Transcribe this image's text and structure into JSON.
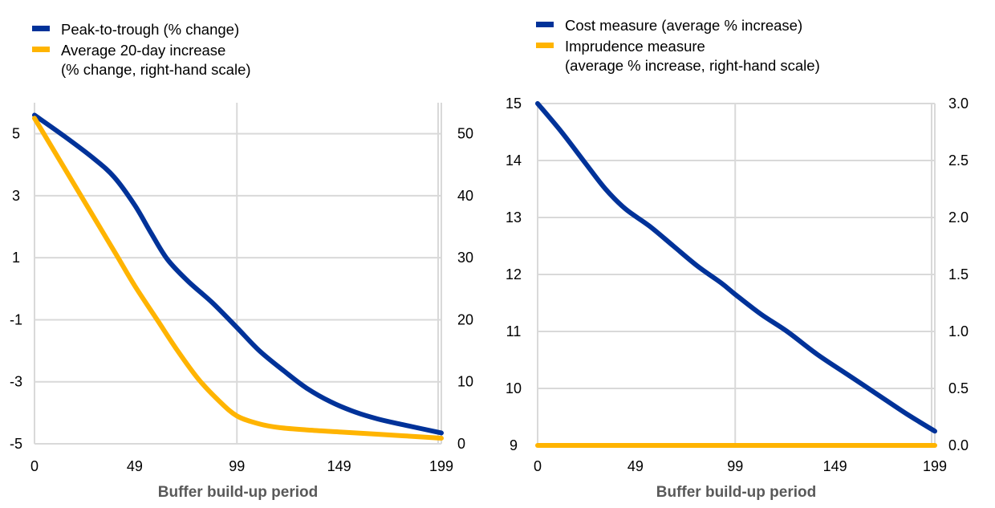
{
  "chart_data": [
    {
      "type": "line",
      "xlabel": "Buffer build-up period",
      "x_ticks": [
        "0",
        "49",
        "99",
        "149",
        "199"
      ],
      "x_range": [
        0,
        199
      ],
      "ylim_left": [
        -5,
        6
      ],
      "y_ticks_left": [
        "5",
        "3",
        "1",
        "-1",
        "-3",
        "-5"
      ],
      "ylim_right": [
        0,
        55
      ],
      "y_ticks_right": [
        "50",
        "40",
        "30",
        "20",
        "10",
        "0"
      ],
      "legend_position": "top-left",
      "series": [
        {
          "name": "Peak-to-trough (% change)",
          "axis": "left",
          "color": "#003299",
          "x": [
            0,
            15,
            29,
            39,
            49,
            57,
            65,
            75,
            87,
            99,
            110,
            122,
            133,
            145,
            157,
            168,
            180,
            199
          ],
          "values": [
            5.6,
            4.9,
            4.2,
            3.6,
            2.7,
            1.8,
            0.95,
            0.25,
            -0.45,
            -1.25,
            -2.0,
            -2.65,
            -3.2,
            -3.65,
            -3.98,
            -4.2,
            -4.38,
            -4.65
          ]
        },
        {
          "name": "Average 20-day increase (% change, right-hand scale)",
          "axis": "right",
          "color": "#FFB400",
          "x": [
            0,
            10,
            20,
            30,
            40,
            49,
            60,
            70,
            80,
            90,
            99,
            110,
            120,
            135,
            150,
            165,
            180,
            199
          ],
          "values": [
            52.5,
            47,
            41.5,
            36,
            30.5,
            25.5,
            20,
            15,
            10.5,
            7,
            4.5,
            3.2,
            2.6,
            2.2,
            1.9,
            1.6,
            1.3,
            0.9
          ]
        }
      ]
    },
    {
      "type": "line",
      "xlabel": "Buffer build-up period",
      "x_ticks": [
        "0",
        "49",
        "99",
        "149",
        "199"
      ],
      "x_range": [
        0,
        199
      ],
      "ylim_left": [
        9,
        15
      ],
      "y_ticks_left": [
        "15",
        "14",
        "13",
        "12",
        "11",
        "10",
        "9"
      ],
      "ylim_right": [
        0,
        3
      ],
      "y_ticks_right": [
        "3.0",
        "2.5",
        "2.0",
        "1.5",
        "1.0",
        "0.5",
        "0.0"
      ],
      "legend_position": "top-left",
      "series": [
        {
          "name": "Cost measure (average % increase)",
          "axis": "left",
          "color": "#003299",
          "x": [
            0,
            12,
            24,
            34,
            44,
            56,
            68,
            80,
            92,
            99,
            112,
            125,
            140,
            155,
            170,
            185,
            199
          ],
          "values": [
            15.0,
            14.5,
            13.95,
            13.5,
            13.15,
            12.85,
            12.5,
            12.15,
            11.85,
            11.65,
            11.3,
            11.0,
            10.6,
            10.25,
            9.9,
            9.55,
            9.25
          ]
        },
        {
          "name": "Imprudence measure (average % increase, right-hand scale)",
          "axis": "right",
          "color": "#FFB400",
          "x": [
            0,
            199
          ],
          "values": [
            0.0,
            0.0
          ]
        }
      ]
    }
  ]
}
